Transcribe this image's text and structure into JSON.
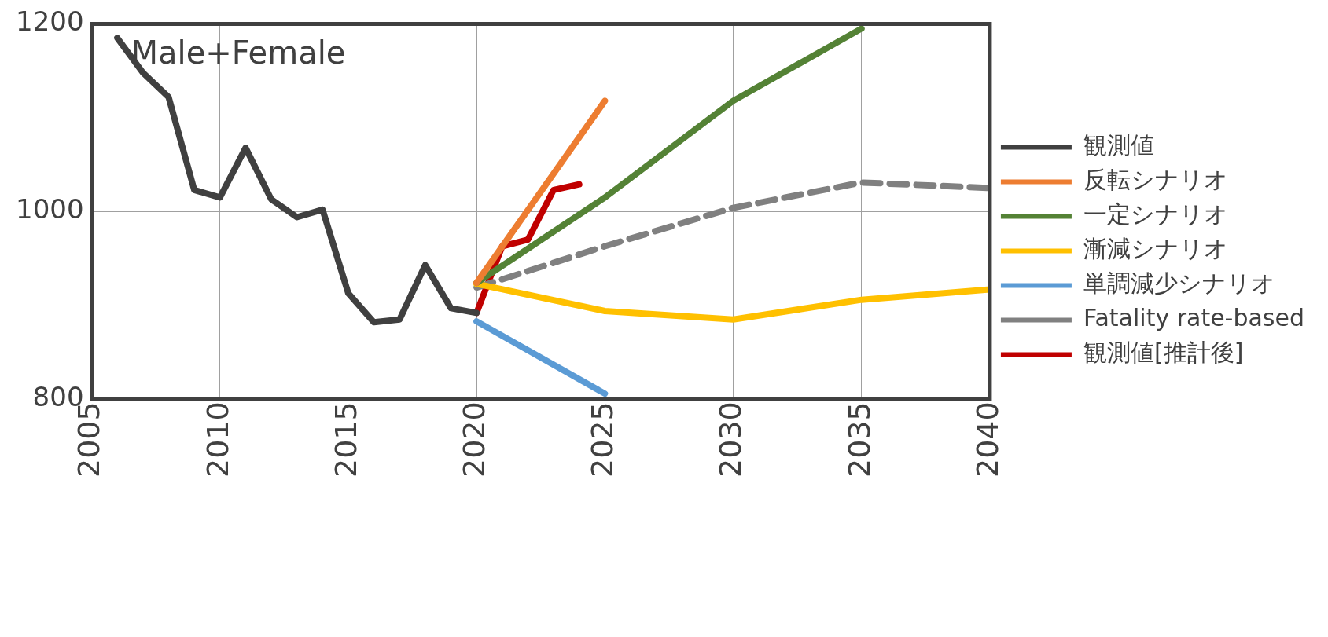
{
  "chart_data": {
    "type": "line",
    "annotations": [
      "Male+Female"
    ],
    "xlim": [
      2005,
      2040
    ],
    "xticks": [
      2005,
      2010,
      2015,
      2020,
      2025,
      2030,
      2035,
      2040
    ],
    "ylim": [
      800,
      1200
    ],
    "yticks": [
      800,
      1000,
      1200
    ],
    "grid": true,
    "legend": "right",
    "marker": "none",
    "series": [
      {
        "name": "観測値",
        "color": "#404040",
        "x": [
          2006,
          2007,
          2008,
          2009,
          2010,
          2011,
          2012,
          2013,
          2014,
          2015,
          2016,
          2017,
          2018,
          2019,
          2020
        ],
        "values": [
          1185,
          1148,
          1122,
          1023,
          1015,
          1068,
          1013,
          994,
          1002,
          913,
          882,
          885,
          943,
          897,
          892
        ]
      },
      {
        "name": "反転シナリオ",
        "color": "#ed7d31",
        "x": [
          2020,
          2025
        ],
        "values": [
          924,
          1118
        ]
      },
      {
        "name": "一定シナリオ",
        "color": "#548235",
        "x": [
          2020,
          2025,
          2030,
          2035
        ],
        "values": [
          924,
          1015,
          1118,
          1195
        ]
      },
      {
        "name": "漸減シナリオ",
        "color": "#ffc000",
        "x": [
          2020,
          2025,
          2030,
          2035,
          2040
        ],
        "values": [
          923,
          894,
          885,
          906,
          917
        ]
      },
      {
        "name": "単調減少シナリオ",
        "color": "#5b9bd5",
        "x": [
          2020,
          2025
        ],
        "values": [
          883,
          806
        ]
      },
      {
        "name": "Fatality rate-based",
        "color": "#808080",
        "line_style": "dashed",
        "x": [
          2020,
          2025,
          2030,
          2035,
          2040
        ],
        "values": [
          919,
          963,
          1004,
          1031,
          1025
        ]
      },
      {
        "name": "観測値[推計後]",
        "color": "#c00000",
        "x": [
          2020,
          2021,
          2022,
          2023,
          2024
        ],
        "values": [
          892,
          963,
          970,
          1023,
          1029
        ]
      }
    ]
  }
}
